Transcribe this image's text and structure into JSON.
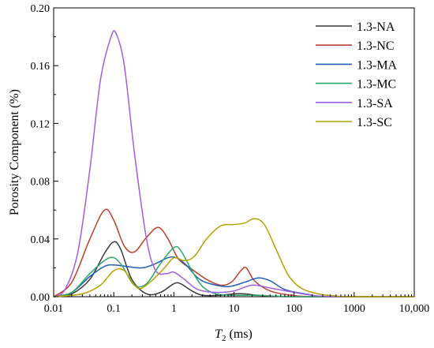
{
  "chart_data": {
    "type": "line",
    "x_scale": "log",
    "xlabel_italic": "T",
    "xlabel_sub": "2",
    "xlabel_rest": " (ms)",
    "ylabel": "Porosity Component (%)",
    "xlim": [
      0.01,
      10000
    ],
    "ylim": [
      0,
      0.2
    ],
    "x_ticks": [
      0.01,
      0.1,
      1,
      10,
      100,
      1000,
      10000
    ],
    "x_tick_labels": [
      "0.01",
      "0.1",
      "1",
      "10",
      "100",
      "1000",
      "10,000"
    ],
    "y_ticks": [
      0,
      0.04,
      0.08,
      0.12,
      0.16,
      0.2
    ],
    "y_tick_labels": [
      "0.00",
      "0.04",
      "0.08",
      "0.12",
      "0.16",
      "0.20"
    ],
    "legend_position": "top-right",
    "grid": false,
    "series": [
      {
        "name": "1.3-NA",
        "color": "#3a3a3a",
        "points": [
          [
            0.01,
            0
          ],
          [
            0.02,
            0.002
          ],
          [
            0.04,
            0.012
          ],
          [
            0.07,
            0.03
          ],
          [
            0.1,
            0.038
          ],
          [
            0.13,
            0.033
          ],
          [
            0.2,
            0.012
          ],
          [
            0.35,
            0.002
          ],
          [
            0.6,
            0.003
          ],
          [
            1,
            0.009
          ],
          [
            1.3,
            0.009
          ],
          [
            2,
            0.004
          ],
          [
            3,
            0.001
          ],
          [
            6,
            0.001
          ],
          [
            10,
            0.002
          ],
          [
            15,
            0.002
          ],
          [
            25,
            0.001
          ],
          [
            50,
            0.0003
          ],
          [
            100,
            0
          ],
          [
            10000,
            0
          ]
        ]
      },
      {
        "name": "1.3-NC",
        "color": "#b8402e",
        "points": [
          [
            0.01,
            0
          ],
          [
            0.02,
            0.01
          ],
          [
            0.04,
            0.04
          ],
          [
            0.07,
            0.06
          ],
          [
            0.1,
            0.053
          ],
          [
            0.15,
            0.035
          ],
          [
            0.22,
            0.031
          ],
          [
            0.35,
            0.041
          ],
          [
            0.55,
            0.048
          ],
          [
            0.8,
            0.04
          ],
          [
            1.2,
            0.026
          ],
          [
            2,
            0.019
          ],
          [
            3.5,
            0.012
          ],
          [
            6,
            0.008
          ],
          [
            9,
            0.01
          ],
          [
            13,
            0.018
          ],
          [
            16,
            0.02
          ],
          [
            22,
            0.011
          ],
          [
            40,
            0.004
          ],
          [
            100,
            0.0008
          ],
          [
            300,
            0
          ],
          [
            10000,
            0
          ]
        ]
      },
      {
        "name": "1.3-MA",
        "color": "#1f5fb8",
        "points": [
          [
            0.01,
            0
          ],
          [
            0.02,
            0.003
          ],
          [
            0.04,
            0.014
          ],
          [
            0.07,
            0.021
          ],
          [
            0.1,
            0.022
          ],
          [
            0.16,
            0.021
          ],
          [
            0.3,
            0.02
          ],
          [
            0.5,
            0.023
          ],
          [
            0.8,
            0.027
          ],
          [
            1.1,
            0.027
          ],
          [
            1.6,
            0.022
          ],
          [
            2.5,
            0.013
          ],
          [
            4,
            0.009
          ],
          [
            8,
            0.007
          ],
          [
            15,
            0.01
          ],
          [
            25,
            0.013
          ],
          [
            40,
            0.011
          ],
          [
            70,
            0.005
          ],
          [
            150,
            0.002
          ],
          [
            400,
            0
          ],
          [
            10000,
            0
          ]
        ]
      },
      {
        "name": "1.3-MC",
        "color": "#2ca86a",
        "points": [
          [
            0.01,
            0
          ],
          [
            0.02,
            0.003
          ],
          [
            0.04,
            0.016
          ],
          [
            0.07,
            0.025
          ],
          [
            0.1,
            0.027
          ],
          [
            0.14,
            0.021
          ],
          [
            0.22,
            0.008
          ],
          [
            0.35,
            0.009
          ],
          [
            0.6,
            0.023
          ],
          [
            1,
            0.034
          ],
          [
            1.3,
            0.032
          ],
          [
            2,
            0.018
          ],
          [
            3,
            0.007
          ],
          [
            5,
            0.002
          ],
          [
            10,
            0.001
          ],
          [
            20,
            0.001
          ],
          [
            50,
            0.0004
          ],
          [
            200,
            0
          ],
          [
            10000,
            0
          ]
        ]
      },
      {
        "name": "1.3-SA",
        "color": "#a35ee0",
        "points": [
          [
            0.01,
            0
          ],
          [
            0.015,
            0.004
          ],
          [
            0.025,
            0.03
          ],
          [
            0.04,
            0.088
          ],
          [
            0.06,
            0.15
          ],
          [
            0.09,
            0.18
          ],
          [
            0.11,
            0.182
          ],
          [
            0.15,
            0.16
          ],
          [
            0.22,
            0.1
          ],
          [
            0.35,
            0.04
          ],
          [
            0.5,
            0.018
          ],
          [
            0.75,
            0.016
          ],
          [
            1,
            0.017
          ],
          [
            1.5,
            0.012
          ],
          [
            2.5,
            0.005
          ],
          [
            5,
            0.003
          ],
          [
            10,
            0.004
          ],
          [
            20,
            0.008
          ],
          [
            40,
            0.006
          ],
          [
            100,
            0.003
          ],
          [
            200,
            0.001
          ],
          [
            500,
            0
          ],
          [
            10000,
            0
          ]
        ]
      },
      {
        "name": "1.3-SC",
        "color": "#b8a000",
        "points": [
          [
            0.01,
            0
          ],
          [
            0.03,
            0.002
          ],
          [
            0.06,
            0.008
          ],
          [
            0.1,
            0.018
          ],
          [
            0.15,
            0.018
          ],
          [
            0.25,
            0.006
          ],
          [
            0.4,
            0.01
          ],
          [
            0.7,
            0.02
          ],
          [
            1,
            0.027
          ],
          [
            1.5,
            0.025
          ],
          [
            2.2,
            0.028
          ],
          [
            3.5,
            0.04
          ],
          [
            6,
            0.049
          ],
          [
            10,
            0.05
          ],
          [
            15,
            0.051
          ],
          [
            22,
            0.054
          ],
          [
            32,
            0.05
          ],
          [
            50,
            0.033
          ],
          [
            80,
            0.015
          ],
          [
            130,
            0.006
          ],
          [
            250,
            0.002
          ],
          [
            500,
            0.0005
          ],
          [
            1000,
            0
          ],
          [
            10000,
            0
          ]
        ]
      }
    ]
  }
}
